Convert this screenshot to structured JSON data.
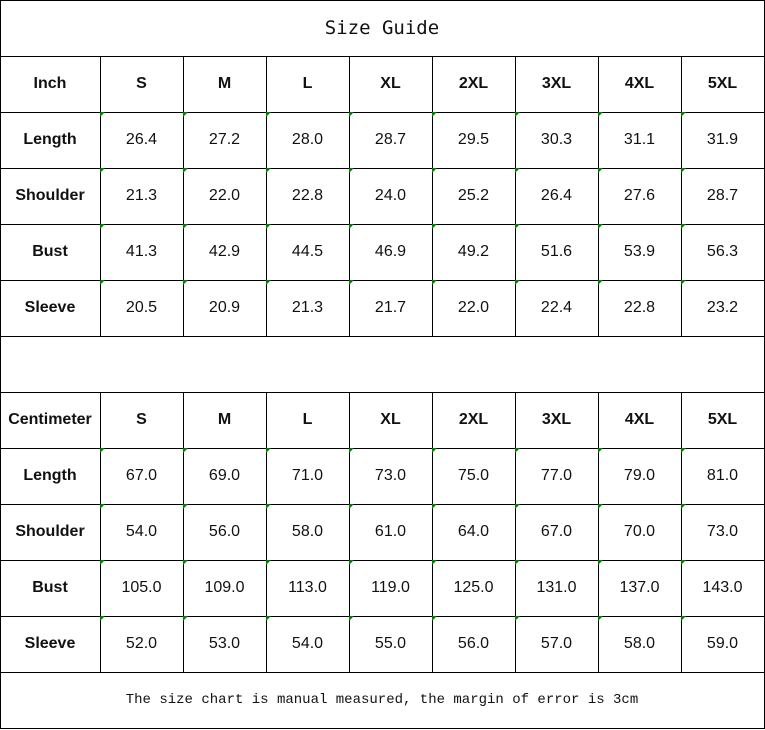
{
  "title": "Size Guide",
  "sizes": [
    "S",
    "M",
    "L",
    "XL",
    "2XL",
    "3XL",
    "4XL",
    "5XL"
  ],
  "tables": [
    {
      "unit": "Inch",
      "rows": [
        {
          "label": "Length",
          "values": [
            "26.4",
            "27.2",
            "28.0",
            "28.7",
            "29.5",
            "30.3",
            "31.1",
            "31.9"
          ]
        },
        {
          "label": "Shoulder",
          "values": [
            "21.3",
            "22.0",
            "22.8",
            "24.0",
            "25.2",
            "26.4",
            "27.6",
            "28.7"
          ]
        },
        {
          "label": "Bust",
          "values": [
            "41.3",
            "42.9",
            "44.5",
            "46.9",
            "49.2",
            "51.6",
            "53.9",
            "56.3"
          ]
        },
        {
          "label": "Sleeve",
          "values": [
            "20.5",
            "20.9",
            "21.3",
            "21.7",
            "22.0",
            "22.4",
            "22.8",
            "23.2"
          ]
        }
      ]
    },
    {
      "unit": "Centimeter",
      "rows": [
        {
          "label": "Length",
          "values": [
            "67.0",
            "69.0",
            "71.0",
            "73.0",
            "75.0",
            "77.0",
            "79.0",
            "81.0"
          ]
        },
        {
          "label": "Shoulder",
          "values": [
            "54.0",
            "56.0",
            "58.0",
            "61.0",
            "64.0",
            "67.0",
            "70.0",
            "73.0"
          ]
        },
        {
          "label": "Bust",
          "values": [
            "105.0",
            "109.0",
            "113.0",
            "119.0",
            "125.0",
            "131.0",
            "137.0",
            "143.0"
          ]
        },
        {
          "label": "Sleeve",
          "values": [
            "52.0",
            "53.0",
            "54.0",
            "55.0",
            "56.0",
            "57.0",
            "58.0",
            "59.0"
          ]
        }
      ]
    }
  ],
  "note": "The size chart is manual measured, the margin of error is 3cm",
  "colors": {
    "corner_marker": "#008000",
    "border": "#000000"
  }
}
